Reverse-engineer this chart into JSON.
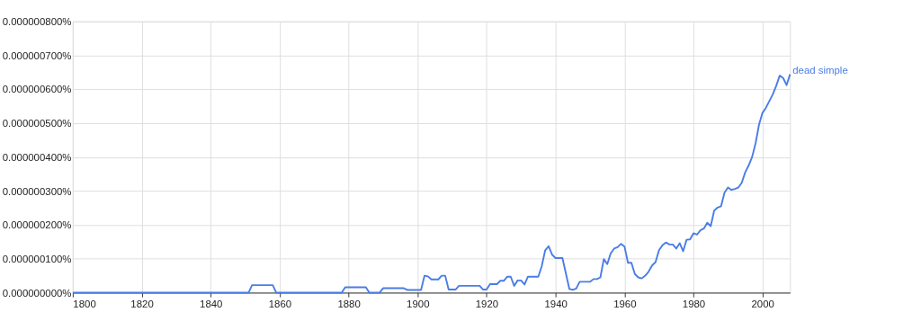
{
  "chart_data": {
    "type": "line",
    "xlim": [
      1800,
      2008
    ],
    "xticks": [
      1800,
      1820,
      1840,
      1860,
      1880,
      1900,
      1920,
      1940,
      1960,
      1980,
      2000
    ],
    "ylim": [
      0,
      8e-07
    ],
    "yticks": [
      {
        "value": 0,
        "label": "0.000000000%"
      },
      {
        "value": 1e-07,
        "label": "0.000000100%"
      },
      {
        "value": 2e-07,
        "label": "0.000000200%"
      },
      {
        "value": 3e-07,
        "label": "0.000000300%"
      },
      {
        "value": 4e-07,
        "label": "0.000000400%"
      },
      {
        "value": 5e-07,
        "label": "0.000000500%"
      },
      {
        "value": 6e-07,
        "label": "0.000000600%"
      },
      {
        "value": 7e-07,
        "label": "0.000000700%"
      },
      {
        "value": 8e-07,
        "label": "0.000000800%"
      }
    ],
    "grid": true,
    "legend": false,
    "marker": "none",
    "line_style": "solid",
    "series": [
      {
        "name": "dead simple",
        "color": "#4a7de6",
        "x": [
          1800,
          1851,
          1852,
          1858,
          1859,
          1878,
          1879,
          1885,
          1886,
          1889,
          1890,
          1896,
          1897,
          1901,
          1902,
          1903,
          1904,
          1906,
          1907,
          1908,
          1909,
          1911,
          1912,
          1918,
          1919,
          1920,
          1921,
          1923,
          1924,
          1925,
          1926,
          1927,
          1928,
          1929,
          1930,
          1931,
          1932,
          1935,
          1936,
          1937,
          1938,
          1939,
          1940,
          1942,
          1944,
          1945,
          1946,
          1947,
          1950,
          1951,
          1952,
          1953,
          1954,
          1955,
          1956,
          1957,
          1958,
          1959,
          1960,
          1961,
          1962,
          1963,
          1964,
          1965,
          1966,
          1967,
          1968,
          1969,
          1970,
          1971,
          1972,
          1973,
          1974,
          1975,
          1976,
          1977,
          1978,
          1979,
          1980,
          1981,
          1982,
          1983,
          1984,
          1985,
          1986,
          1987,
          1988,
          1989,
          1990,
          1991,
          1992,
          1993,
          1994,
          1995,
          1996,
          1997,
          1998,
          1999,
          2000,
          2001,
          2002,
          2003,
          2004,
          2005,
          2006,
          2007,
          2008
        ],
        "values": [
          0,
          0,
          2.2e-08,
          2.2e-08,
          0,
          0,
          1.6e-08,
          1.6e-08,
          0,
          0,
          1.3e-08,
          1.3e-08,
          8e-09,
          8e-09,
          5e-08,
          4.8e-08,
          3.9e-08,
          3.9e-08,
          5e-08,
          5e-08,
          9e-09,
          9e-09,
          2e-08,
          2e-08,
          9e-09,
          9e-09,
          2.5e-08,
          2.5e-08,
          3.5e-08,
          3.5e-08,
          4.7e-08,
          4.7e-08,
          2e-08,
          3.6e-08,
          3.6e-08,
          2.4e-08,
          4.7e-08,
          4.7e-08,
          7.8e-08,
          1.25e-07,
          1.37e-07,
          1.12e-07,
          1.02e-07,
          1.02e-07,
          1.1e-08,
          8e-09,
          1.2e-08,
          3.2e-08,
          3.2e-08,
          4e-08,
          4e-08,
          4.5e-08,
          9.9e-08,
          8.4e-08,
          1.16e-07,
          1.3e-07,
          1.34e-07,
          1.44e-07,
          1.36e-07,
          8.8e-08,
          8.8e-08,
          5.5e-08,
          4.5e-08,
          4.2e-08,
          5e-08,
          6.2e-08,
          8e-08,
          9e-08,
          1.25e-07,
          1.4e-07,
          1.48e-07,
          1.42e-07,
          1.42e-07,
          1.3e-07,
          1.46e-07,
          1.22e-07,
          1.56e-07,
          1.57e-07,
          1.75e-07,
          1.71e-07,
          1.84e-07,
          1.89e-07,
          2.06e-07,
          1.96e-07,
          2.42e-07,
          2.51e-07,
          2.55e-07,
          2.95e-07,
          3.1e-07,
          3.03e-07,
          3.06e-07,
          3.1e-07,
          3.24e-07,
          3.55e-07,
          3.75e-07,
          4e-07,
          4.4e-07,
          4.95e-07,
          5.3e-07,
          5.45e-07,
          5.65e-07,
          5.85e-07,
          6.1e-07,
          6.4e-07,
          6.33e-07,
          6.12e-07,
          6.44e-07
        ]
      }
    ]
  }
}
